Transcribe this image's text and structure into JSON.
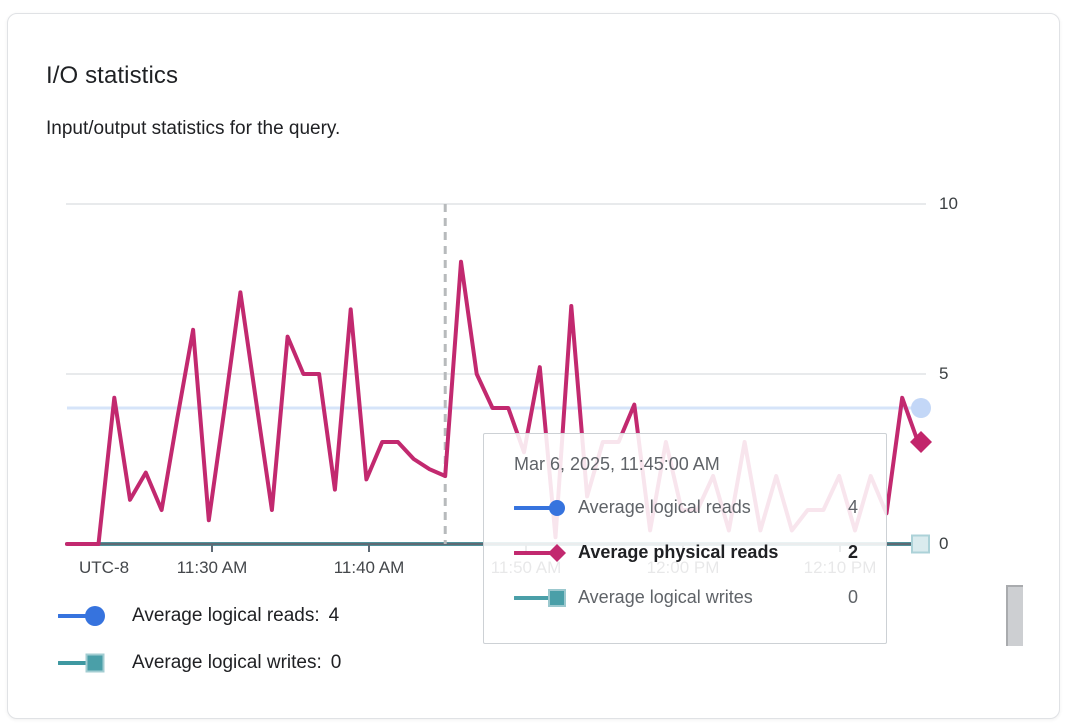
{
  "header": {
    "title": "I/O statistics",
    "subtitle": "Input/output statistics for the query."
  },
  "chart": {
    "timezone_label": "UTC-8",
    "y_ticks": [
      "10",
      "5",
      "0"
    ],
    "x_ticks": [
      "11:30 AM",
      "11:40 AM",
      "11:50 AM",
      "12:00 PM",
      "12:10 PM"
    ],
    "colors": {
      "gridline": "#e8eaec",
      "axis": "#5e6a74",
      "dashed_crosshair": "#b7babc",
      "reads_line_faded": "#d6e4f9",
      "reads_end_marker": "#c3d7f7",
      "physical_line": "#c2296f",
      "physical_end_marker": "#c2256b",
      "writes_line": "#4a9fa8",
      "writes_end_marker_fill": "#daebee",
      "writes_end_marker_border": "#acd2d8"
    }
  },
  "chart_data": {
    "type": "line",
    "title": "I/O statistics",
    "timezone": "UTC-8",
    "x_start": "11:21 AM",
    "x_end": "12:15 PM",
    "x_interval_minutes": 1,
    "x_axis_ticks": [
      "11:30 AM",
      "11:40 AM",
      "11:50 AM",
      "12:00 PM",
      "12:10 PM"
    ],
    "ylim": [
      0,
      10
    ],
    "y_ticks": [
      0,
      5,
      10
    ],
    "grid": "horizontal",
    "legend_position": "bottom-left",
    "highlight_index": 24,
    "highlight_time": "Mar 6, 2025, 11:45:00 AM",
    "series": [
      {
        "name": "Average logical reads",
        "color": "#3673de",
        "marker": "circle",
        "constant_value": 4
      },
      {
        "name": "Average physical reads",
        "color": "#c2296f",
        "marker": "diamond",
        "values": [
          0,
          0,
          0,
          4.3,
          1.3,
          2.1,
          1,
          3.7,
          6.3,
          0.7,
          4,
          7.4,
          4.2,
          1,
          6.1,
          5,
          5,
          1.6,
          6.9,
          1.9,
          3,
          3,
          2.5,
          2.2,
          2,
          8.3,
          5,
          4,
          4,
          2.7,
          5.2,
          0.2,
          7,
          1.4,
          3,
          3,
          4.1,
          0.4,
          3,
          1,
          1,
          2,
          0.4,
          3,
          0.4,
          2,
          0.4,
          1,
          1,
          2,
          0.4,
          2,
          0.9,
          4.3,
          3
        ]
      },
      {
        "name": "Average logical writes",
        "color": "#4a9fa8",
        "marker": "square",
        "constant_value": 0
      }
    ]
  },
  "tooltip": {
    "date": "Mar 6, 2025, 11:45:00 AM",
    "rows": [
      {
        "series": "Average logical reads",
        "value": "4",
        "marker": "circle",
        "color": "#3673de",
        "bold": false
      },
      {
        "series": "Average physical reads",
        "value": "2",
        "marker": "diamond",
        "color": "#c2296f",
        "bold": true
      },
      {
        "series": "Average logical writes",
        "value": "0",
        "marker": "square",
        "color": "#4a9fa8",
        "bold": false
      }
    ]
  },
  "legend": {
    "items": [
      {
        "label": "Average logical reads:",
        "value": "4",
        "marker": "circle",
        "marker_fill": "#3673de",
        "marker_border": "#3673de",
        "line_color": "#3673de"
      },
      {
        "label": "Average logical writes:",
        "value": "0",
        "marker": "square",
        "marker_fill": "#4a9fa8",
        "marker_border": "#a3cdd2",
        "line_color": "#3e98a1"
      }
    ]
  }
}
